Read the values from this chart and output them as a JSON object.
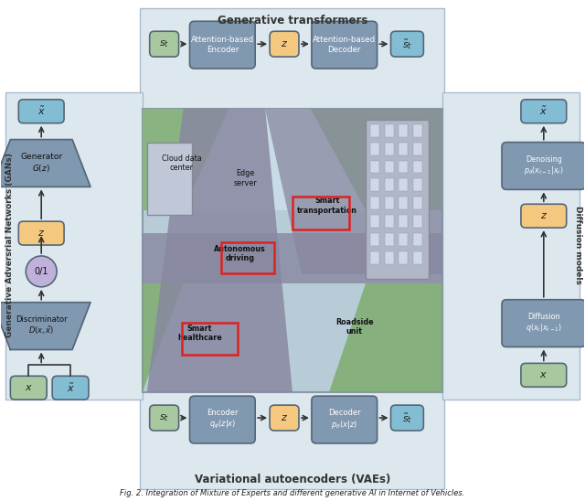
{
  "fig_width": 6.4,
  "fig_height": 5.48,
  "dpi": 100,
  "bg_color": "#ffffff",
  "caption": "Fig. 2. Integration of Mixture of Experts and different generative AI in Internet of Vehicles.",
  "box_blue": "#82bdd4",
  "box_green": "#a8c8a0",
  "box_orange": "#f5c880",
  "box_purple": "#c0b0dc",
  "box_gray": "#8098b0",
  "transformer_label": "Generative transformers",
  "vae_label": "Variational autoencoders (VAEs)",
  "gan_label": "Generative Adversrial Networks (GANs)",
  "diffusion_label": "Diffusion models"
}
